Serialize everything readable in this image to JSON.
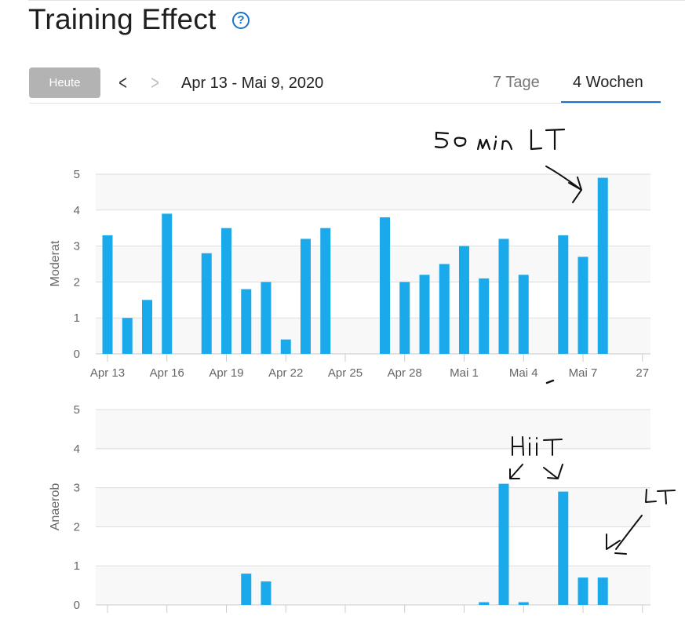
{
  "header": {
    "title": "Training Effect",
    "help_icon": "question-circle-icon",
    "help_glyph": "?"
  },
  "toolbar": {
    "today_label": "Heute",
    "prev_icon": "chevron-left-icon",
    "next_icon": "chevron-right-icon",
    "date_range": "Apr 13 - Mai 9, 2020"
  },
  "tabs": [
    {
      "label": "7 Tage",
      "active": false
    },
    {
      "label": "4 Wochen",
      "active": true
    }
  ],
  "colors": {
    "bar": "#1aa9ea",
    "accent": "#1a73c9"
  },
  "chart_data": [
    {
      "type": "bar",
      "ylabel": "Moderat",
      "ylim": [
        0,
        5
      ],
      "yticks": [
        0,
        1,
        2,
        3,
        4,
        5
      ],
      "x_tick_labels": [
        "Apr 13",
        "Apr 16",
        "Apr 19",
        "Apr 22",
        "Apr 25",
        "Apr 28",
        "Mai 1",
        "Mai 4",
        "Mai 7",
        "27"
      ],
      "values": [
        3.3,
        1.0,
        1.5,
        3.9,
        null,
        2.8,
        3.5,
        1.8,
        2.0,
        0.4,
        3.2,
        3.5,
        null,
        null,
        3.8,
        2.0,
        2.2,
        2.5,
        3.0,
        2.1,
        3.2,
        2.2,
        null,
        3.3,
        2.7,
        4.9,
        null
      ],
      "annotations": [
        "50 min LT"
      ]
    },
    {
      "type": "bar",
      "ylabel": "Anaerob",
      "ylim": [
        0,
        5
      ],
      "yticks": [
        0,
        1,
        2,
        3,
        4,
        5
      ],
      "values": [
        null,
        null,
        null,
        null,
        null,
        null,
        null,
        0.8,
        0.6,
        null,
        null,
        null,
        null,
        null,
        null,
        null,
        null,
        null,
        null,
        0.07,
        3.1,
        0.07,
        null,
        2.9,
        0.7,
        0.7,
        null
      ],
      "annotations": [
        "HIIT",
        "LT"
      ]
    }
  ]
}
